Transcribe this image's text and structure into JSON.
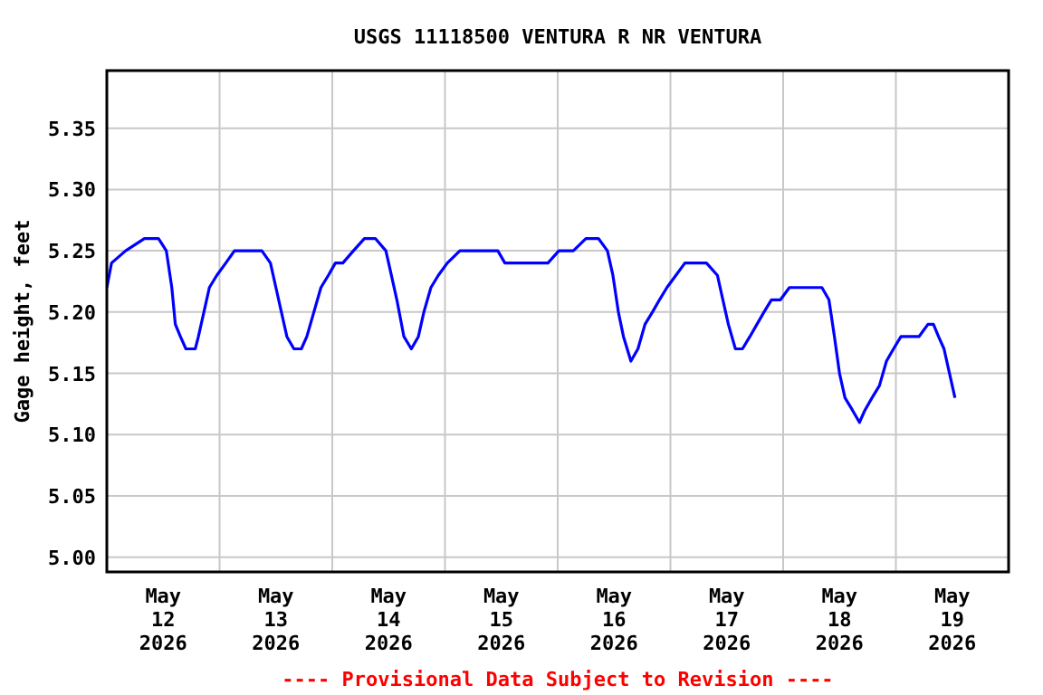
{
  "chart_data": {
    "type": "line",
    "title": "USGS 11118500 VENTURA R NR VENTURA",
    "ylabel": "Gage height, feet",
    "annotations": [
      "---- Provisional Data Subject to Revision ----"
    ],
    "x": [
      "2026-05-12T00:00",
      "2026-05-12T01:00",
      "2026-05-12T04:00",
      "2026-05-12T08:00",
      "2026-05-12T11:00",
      "2026-05-12T12:40",
      "2026-05-12T13:50",
      "2026-05-12T14:35",
      "2026-05-12T15:40",
      "2026-05-12T16:50",
      "2026-05-12T18:50",
      "2026-05-12T19:30",
      "2026-05-12T20:40",
      "2026-05-12T21:50",
      "2026-05-12T23:25",
      "2026-05-13T01:20",
      "2026-05-13T03:10",
      "2026-05-13T05:10",
      "2026-05-13T07:00",
      "2026-05-13T09:00",
      "2026-05-13T10:50",
      "2026-05-13T12:00",
      "2026-05-13T13:10",
      "2026-05-13T14:20",
      "2026-05-13T15:50",
      "2026-05-13T17:25",
      "2026-05-13T18:35",
      "2026-05-13T20:05",
      "2026-05-13T21:35",
      "2026-05-13T23:10",
      "2026-05-14T00:40",
      "2026-05-14T02:15",
      "2026-05-14T04:30",
      "2026-05-14T06:50",
      "2026-05-14T09:10",
      "2026-05-14T11:25",
      "2026-05-14T12:35",
      "2026-05-14T13:45",
      "2026-05-14T15:15",
      "2026-05-14T16:50",
      "2026-05-14T18:20",
      "2026-05-14T19:30",
      "2026-05-14T21:00",
      "2026-05-14T22:35",
      "2026-05-15T00:30",
      "2026-05-15T03:10",
      "2026-05-15T05:50",
      "2026-05-15T08:55",
      "2026-05-15T11:15",
      "2026-05-15T12:45",
      "2026-05-15T14:40",
      "2026-05-15T17:20",
      "2026-05-15T19:40",
      "2026-05-15T21:55",
      "2026-05-16T00:15",
      "2026-05-16T03:20",
      "2026-05-16T06:00",
      "2026-05-16T08:40",
      "2026-05-16T10:35",
      "2026-05-16T11:45",
      "2026-05-16T12:55",
      "2026-05-16T14:00",
      "2026-05-16T15:35",
      "2026-05-16T17:05",
      "2026-05-16T18:35",
      "2026-05-16T20:10",
      "2026-05-16T21:40",
      "2026-05-16T23:15",
      "2026-05-17T01:10",
      "2026-05-17T03:05",
      "2026-05-17T05:25",
      "2026-05-17T07:40",
      "2026-05-17T10:00",
      "2026-05-17T11:10",
      "2026-05-17T12:20",
      "2026-05-17T13:50",
      "2026-05-17T15:20",
      "2026-05-17T16:55",
      "2026-05-17T18:25",
      "2026-05-17T19:55",
      "2026-05-17T21:30",
      "2026-05-17T23:25",
      "2026-05-18T01:20",
      "2026-05-18T03:40",
      "2026-05-18T05:55",
      "2026-05-18T08:15",
      "2026-05-18T09:45",
      "2026-05-18T10:55",
      "2026-05-18T12:00",
      "2026-05-18T13:10",
      "2026-05-18T14:45",
      "2026-05-18T16:15",
      "2026-05-18T17:25",
      "2026-05-18T18:55",
      "2026-05-18T20:30",
      "2026-05-18T22:00",
      "2026-05-18T23:30",
      "2026-05-19T01:05",
      "2026-05-19T03:00",
      "2026-05-19T04:55",
      "2026-05-19T06:50",
      "2026-05-19T08:00",
      "2026-05-19T09:05",
      "2026-05-19T10:15",
      "2026-05-19T11:25",
      "2026-05-19T12:35"
    ],
    "series": [
      {
        "color": "#0000ff",
        "values": [
          5.22,
          5.24,
          5.25,
          5.26,
          5.26,
          5.25,
          5.22,
          5.19,
          5.18,
          5.17,
          5.17,
          5.18,
          5.2,
          5.22,
          5.23,
          5.24,
          5.25,
          5.25,
          5.25,
          5.25,
          5.24,
          5.22,
          5.2,
          5.18,
          5.17,
          5.17,
          5.18,
          5.2,
          5.22,
          5.23,
          5.24,
          5.24,
          5.25,
          5.26,
          5.26,
          5.25,
          5.23,
          5.21,
          5.18,
          5.17,
          5.18,
          5.2,
          5.22,
          5.23,
          5.24,
          5.25,
          5.25,
          5.25,
          5.25,
          5.24,
          5.24,
          5.24,
          5.24,
          5.24,
          5.25,
          5.25,
          5.26,
          5.26,
          5.25,
          5.23,
          5.2,
          5.18,
          5.16,
          5.17,
          5.19,
          5.2,
          5.21,
          5.22,
          5.23,
          5.24,
          5.24,
          5.24,
          5.23,
          5.21,
          5.19,
          5.17,
          5.17,
          5.18,
          5.19,
          5.2,
          5.21,
          5.21,
          5.22,
          5.22,
          5.22,
          5.22,
          5.21,
          5.18,
          5.15,
          5.13,
          5.12,
          5.11,
          5.12,
          5.13,
          5.14,
          5.16,
          5.17,
          5.18,
          5.18,
          5.18,
          5.19,
          5.19,
          5.18,
          5.17,
          5.15,
          5.13
        ]
      }
    ],
    "xlim": [
      "2026-05-12",
      "2026-05-20"
    ],
    "xticks": [
      {
        "value": "2026-05-12T12:00",
        "label": "May\n12\n2026"
      },
      {
        "value": "2026-05-13T00:00",
        "label": null
      },
      {
        "value": "2026-05-13T12:00",
        "label": "May\n13\n2026"
      },
      {
        "value": "2026-05-14T00:00",
        "label": null
      },
      {
        "value": "2026-05-14T12:00",
        "label": "May\n14\n2026"
      },
      {
        "value": "2026-05-15T00:00",
        "label": null
      },
      {
        "value": "2026-05-15T12:00",
        "label": "May\n15\n2026"
      },
      {
        "value": "2026-05-16T00:00",
        "label": null
      },
      {
        "value": "2026-05-16T12:00",
        "label": "May\n16\n2026"
      },
      {
        "value": "2026-05-17T00:00",
        "label": null
      },
      {
        "value": "2026-05-17T12:00",
        "label": "May\n17\n2026"
      },
      {
        "value": "2026-05-18T00:00",
        "label": null
      },
      {
        "value": "2026-05-18T12:00",
        "label": "May\n18\n2026"
      },
      {
        "value": "2026-05-19T00:00",
        "label": null
      },
      {
        "value": "2026-05-19T12:00",
        "label": "May\n19\n2026"
      }
    ],
    "ylim": [
      4.988,
      5.397
    ],
    "yticks": [
      {
        "value": 5.0,
        "label": "5.00"
      },
      {
        "value": 5.05,
        "label": "5.05"
      },
      {
        "value": 5.1,
        "label": "5.10"
      },
      {
        "value": 5.15,
        "label": "5.15"
      },
      {
        "value": 5.2,
        "label": "5.20"
      },
      {
        "value": 5.25,
        "label": "5.25"
      },
      {
        "value": 5.3,
        "label": "5.30"
      },
      {
        "value": 5.35,
        "label": "5.35"
      }
    ],
    "grid": true
  }
}
